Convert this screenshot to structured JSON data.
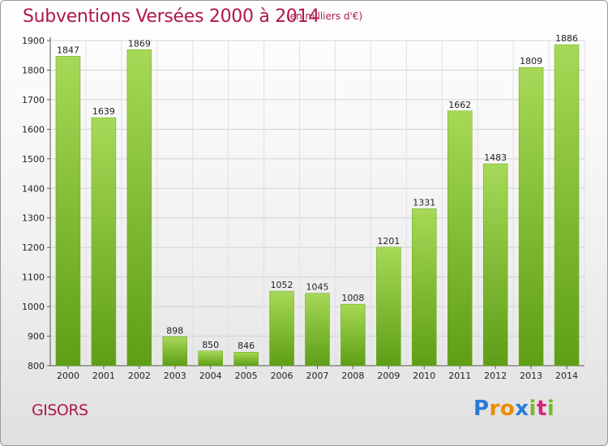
{
  "chart_data": {
    "type": "bar",
    "title": "Subventions Versées 2000 à 2014",
    "subtitle": "(en milliers d'€)",
    "categories": [
      "2000",
      "2001",
      "2002",
      "2003",
      "2004",
      "2005",
      "2006",
      "2007",
      "2008",
      "2009",
      "2010",
      "2011",
      "2012",
      "2013",
      "2014"
    ],
    "values": [
      1847,
      1639,
      1869,
      898,
      850,
      846,
      1052,
      1045,
      1008,
      1201,
      1331,
      1662,
      1483,
      1809,
      1886
    ],
    "ylim": [
      800,
      1900
    ],
    "yticks": [
      800,
      900,
      1000,
      1100,
      1200,
      1300,
      1400,
      1500,
      1600,
      1700,
      1800,
      1900
    ],
    "grid": true,
    "bar_color": "#7fbf2a"
  },
  "commune": "GISORS",
  "logo": {
    "text": "Proxiti",
    "letters": [
      {
        "ch": "P",
        "color": "#2b7bd6"
      },
      {
        "ch": "r",
        "color": "#f08a00"
      },
      {
        "ch": "o",
        "color": "#f08a00"
      },
      {
        "ch": "x",
        "color": "#2b7bd6"
      },
      {
        "ch": "i",
        "color": "#7ab829"
      },
      {
        "ch": "t",
        "color": "#d8237a"
      },
      {
        "ch": "i",
        "color": "#7ab829"
      }
    ]
  }
}
